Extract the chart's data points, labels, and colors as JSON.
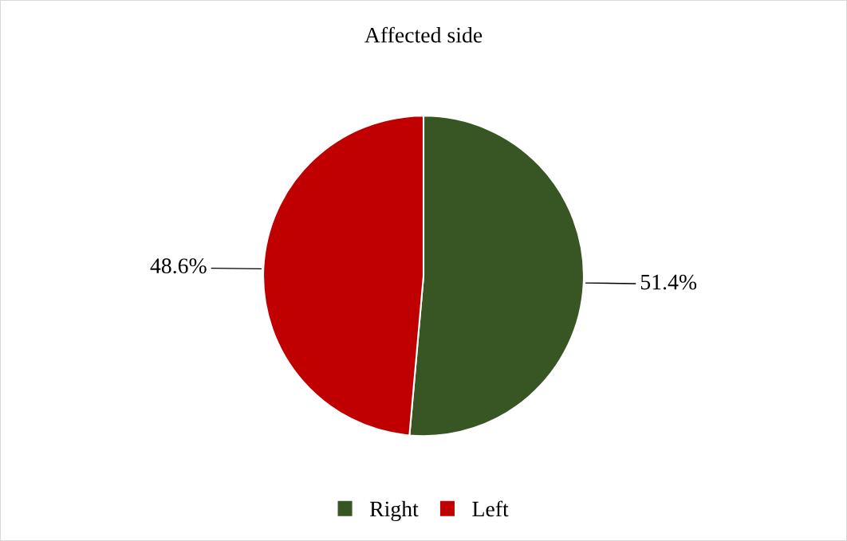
{
  "chart_data": {
    "type": "pie",
    "title": "Affected side",
    "categories": [
      "Right",
      "Left"
    ],
    "values": [
      51.4,
      48.6
    ],
    "colors": [
      "#375623",
      "#c00000"
    ],
    "value_labels": [
      "51.4%",
      "48.6%"
    ],
    "legend": "bottom"
  }
}
